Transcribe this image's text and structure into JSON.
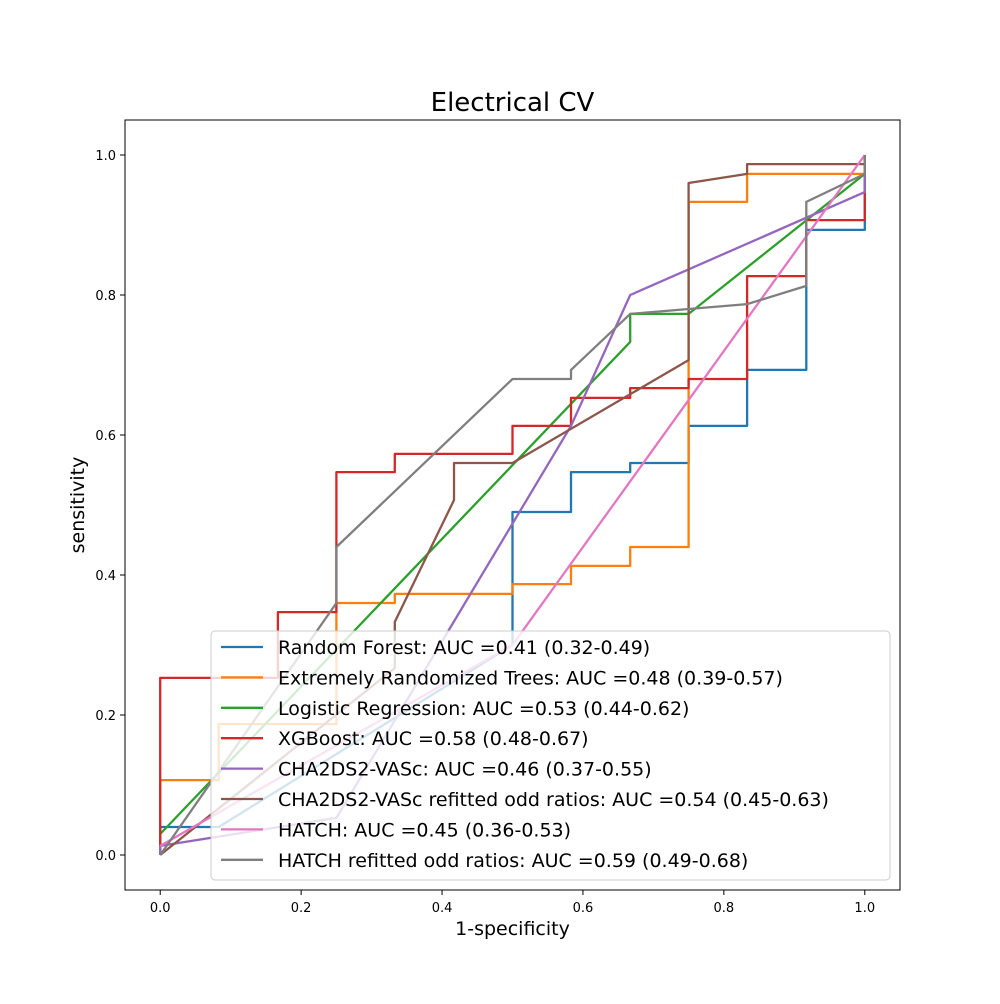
{
  "chart_data": {
    "type": "line",
    "title": "Electrical CV",
    "xlabel": "1-specificity",
    "ylabel": "sensitivity",
    "xlim": [
      -0.05,
      1.05
    ],
    "ylim": [
      -0.05,
      1.05
    ],
    "x_ticks": [
      0.0,
      0.2,
      0.4,
      0.6,
      0.8,
      1.0
    ],
    "y_ticks": [
      0.0,
      0.2,
      0.4,
      0.6,
      0.8,
      1.0
    ],
    "x_tick_labels": [
      "0.0",
      "0.2",
      "0.4",
      "0.6",
      "0.8",
      "1.0"
    ],
    "y_tick_labels": [
      "0.0",
      "0.2",
      "0.4",
      "0.6",
      "0.8",
      "1.0"
    ],
    "grid": false,
    "legend_position": "lower-right",
    "series": [
      {
        "name": "Random Forest: AUC =0.41 (0.32-0.49)",
        "color": "#1f77b4",
        "points": [
          [
            0,
            0
          ],
          [
            0,
            0.04
          ],
          [
            0.083,
            0.04
          ],
          [
            0.083,
            0.04
          ],
          [
            0.5,
            0.3
          ],
          [
            0.5,
            0.49
          ],
          [
            0.583,
            0.49
          ],
          [
            0.583,
            0.547
          ],
          [
            0.667,
            0.547
          ],
          [
            0.667,
            0.56
          ],
          [
            0.75,
            0.56
          ],
          [
            0.75,
            0.613
          ],
          [
            0.833,
            0.613
          ],
          [
            0.833,
            0.693
          ],
          [
            0.917,
            0.693
          ],
          [
            0.917,
            0.893
          ],
          [
            1,
            0.893
          ],
          [
            1,
            1
          ]
        ]
      },
      {
        "name": "Extremely Randomized Trees: AUC =0.48 (0.39-0.57)",
        "color": "#ff7f0e",
        "points": [
          [
            0,
            0
          ],
          [
            0,
            0.107
          ],
          [
            0.083,
            0.107
          ],
          [
            0.083,
            0.187
          ],
          [
            0.25,
            0.187
          ],
          [
            0.25,
            0.36
          ],
          [
            0.333,
            0.36
          ],
          [
            0.333,
            0.373
          ],
          [
            0.5,
            0.373
          ],
          [
            0.5,
            0.387
          ],
          [
            0.583,
            0.387
          ],
          [
            0.583,
            0.413
          ],
          [
            0.667,
            0.413
          ],
          [
            0.667,
            0.44
          ],
          [
            0.75,
            0.44
          ],
          [
            0.75,
            0.933
          ],
          [
            0.833,
            0.933
          ],
          [
            0.833,
            0.973
          ],
          [
            1,
            0.973
          ],
          [
            1,
            1
          ]
        ]
      },
      {
        "name": "Logistic Regression: AUC =0.53 (0.44-0.62)",
        "color": "#2ca02c",
        "points": [
          [
            0,
            0
          ],
          [
            0,
            0.03
          ],
          [
            0.667,
            0.733
          ],
          [
            0.667,
            0.773
          ],
          [
            0.75,
            0.773
          ],
          [
            1,
            0.973
          ],
          [
            1,
            1
          ]
        ]
      },
      {
        "name": "XGBoost: AUC =0.58 (0.48-0.67)",
        "color": "#d62728",
        "points": [
          [
            0,
            0
          ],
          [
            0,
            0.253
          ],
          [
            0.167,
            0.253
          ],
          [
            0.167,
            0.347
          ],
          [
            0.25,
            0.347
          ],
          [
            0.25,
            0.547
          ],
          [
            0.333,
            0.547
          ],
          [
            0.333,
            0.573
          ],
          [
            0.5,
            0.573
          ],
          [
            0.5,
            0.613
          ],
          [
            0.583,
            0.613
          ],
          [
            0.583,
            0.653
          ],
          [
            0.667,
            0.653
          ],
          [
            0.667,
            0.667
          ],
          [
            0.75,
            0.667
          ],
          [
            0.75,
            0.68
          ],
          [
            0.833,
            0.68
          ],
          [
            0.833,
            0.827
          ],
          [
            0.917,
            0.827
          ],
          [
            0.917,
            0.907
          ],
          [
            1,
            0.907
          ],
          [
            1,
            1
          ]
        ]
      },
      {
        "name": "CHA2DS2-VASc: AUC =0.46 (0.37-0.55)",
        "color": "#9467bd",
        "points": [
          [
            0,
            0
          ],
          [
            0,
            0.013
          ],
          [
            0.25,
            0.053
          ],
          [
            0.583,
            0.613
          ],
          [
            0.667,
            0.8
          ],
          [
            1,
            0.947
          ],
          [
            1,
            1
          ]
        ]
      },
      {
        "name": "CHA2DS2-VASc refitted odd ratios: AUC =0.54 (0.45-0.63)",
        "color": "#8c564b",
        "points": [
          [
            0,
            0
          ],
          [
            0.333,
            0.267
          ],
          [
            0.333,
            0.333
          ],
          [
            0.417,
            0.507
          ],
          [
            0.417,
            0.56
          ],
          [
            0.5,
            0.56
          ],
          [
            0.75,
            0.707
          ],
          [
            0.75,
            0.96
          ],
          [
            0.833,
            0.973
          ],
          [
            0.833,
            0.987
          ],
          [
            1,
            0.987
          ],
          [
            1,
            1
          ]
        ]
      },
      {
        "name": "HATCH: AUC =0.45 (0.36-0.53)",
        "color": "#e377c2",
        "points": [
          [
            0,
            0.013
          ],
          [
            0.5,
            0.3
          ],
          [
            1,
            1
          ]
        ]
      },
      {
        "name": "HATCH refitted odd ratios: AUC =0.59 (0.49-0.68)",
        "color": "#7f7f7f",
        "points": [
          [
            0,
            0
          ],
          [
            0.25,
            0.36
          ],
          [
            0.25,
            0.44
          ],
          [
            0.5,
            0.68
          ],
          [
            0.583,
            0.68
          ],
          [
            0.583,
            0.693
          ],
          [
            0.667,
            0.773
          ],
          [
            0.75,
            0.78
          ],
          [
            0.833,
            0.787
          ],
          [
            0.917,
            0.813
          ],
          [
            0.917,
            0.933
          ],
          [
            1,
            0.973
          ],
          [
            1,
            1
          ]
        ]
      }
    ]
  }
}
